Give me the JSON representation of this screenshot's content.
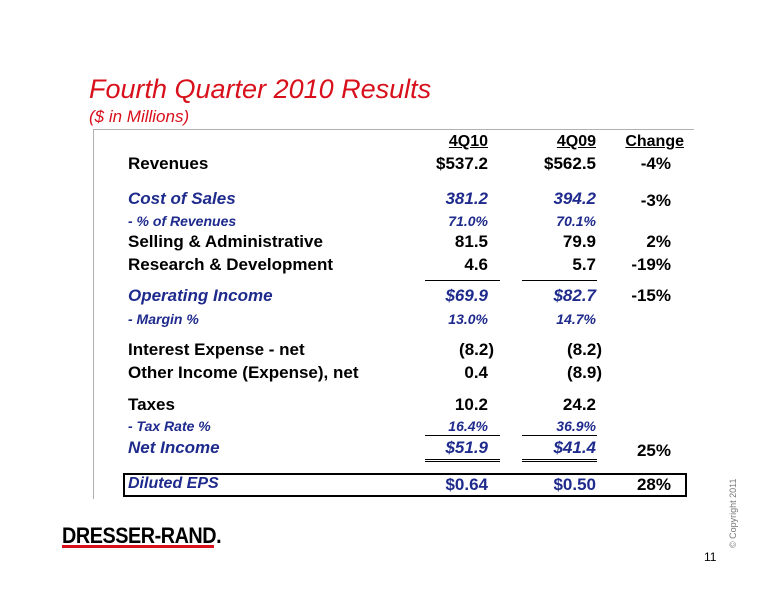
{
  "title": "Fourth Quarter 2010 Results",
  "subtitle": "($ in Millions)",
  "columns": [
    "4Q10",
    "4Q09",
    "Change"
  ],
  "rows": {
    "revenues": {
      "label": "Revenues",
      "v1": "$537.2",
      "v2": "$562.5",
      "change": "-4%"
    },
    "cost_of_sales": {
      "label": "Cost of Sales",
      "v1": "381.2",
      "v2": "394.2",
      "change": "-3%"
    },
    "pct_revenues": {
      "label": "- % of Revenues",
      "v1": "71.0%",
      "v2": "70.1%"
    },
    "selling_admin": {
      "label": "Selling & Administrative",
      "v1": "81.5",
      "v2": "79.9",
      "change": "2%"
    },
    "rnd": {
      "label": "Research & Development",
      "v1": "4.6",
      "v2": "5.7",
      "change": "-19%"
    },
    "operating_income": {
      "label": "Operating Income",
      "v1": "$69.9",
      "v2": "$82.7",
      "change": "-15%"
    },
    "margin": {
      "label": "- Margin %",
      "v1": "13.0%",
      "v2": "14.7%"
    },
    "interest": {
      "label": "Interest Expense - net",
      "v1": "(8.2)",
      "v2": "(8.2)"
    },
    "other_income": {
      "label": "Other Income (Expense), net",
      "v1": "0.4",
      "v2": "(8.9)"
    },
    "taxes": {
      "label": "Taxes",
      "v1": "10.2",
      "v2": "24.2"
    },
    "tax_rate": {
      "label": "- Tax Rate %",
      "v1": "16.4%",
      "v2": "36.9%"
    },
    "net_income": {
      "label": "Net Income",
      "v1": "$51.9",
      "v2": "$41.4",
      "change": "25%"
    },
    "diluted_eps": {
      "label": "Diluted EPS",
      "v1": "$0.64",
      "v2": "$0.50",
      "change": "28%"
    }
  },
  "logo_text": "DRESSER-RAND.",
  "copyright": "© Copyright 2011",
  "page_number": "11",
  "colors": {
    "title": "#d8101c",
    "accent_blue": "#1e2a8c"
  }
}
